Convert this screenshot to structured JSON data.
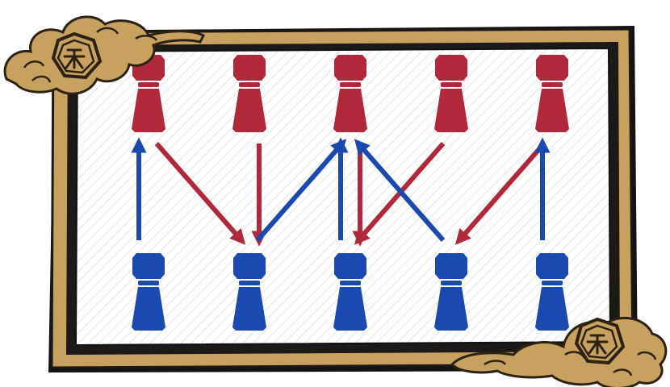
{
  "scene": {
    "colors": {
      "frame_gold": "#c9a15e",
      "frame_dark": "#1c1a19",
      "frame_edge": "#111111",
      "board_bg": "#ffffff",
      "hatch": "#e6e6e6",
      "red_piece": "#b0283a",
      "blue_piece": "#1a49b0",
      "red_arrow": "#b0283a",
      "blue_arrow": "#1a49b0",
      "cloud_fill": "#c9a15e",
      "cloud_line": "#2b2214"
    },
    "top_row": [
      {
        "id": "red-piece-1",
        "color": "red"
      },
      {
        "id": "red-piece-2",
        "color": "red"
      },
      {
        "id": "red-piece-3",
        "color": "red"
      },
      {
        "id": "red-piece-4",
        "color": "red"
      },
      {
        "id": "red-piece-5",
        "color": "red"
      }
    ],
    "bottom_row": [
      {
        "id": "blue-piece-1",
        "color": "blue"
      },
      {
        "id": "blue-piece-2",
        "color": "blue"
      },
      {
        "id": "blue-piece-3",
        "color": "blue"
      },
      {
        "id": "blue-piece-4",
        "color": "blue"
      },
      {
        "id": "blue-piece-5",
        "color": "blue"
      }
    ],
    "arrows": [
      {
        "name": "blue-arrow-b1-to-r1",
        "color": "blue",
        "from": {
          "row": "bottom",
          "col": 1
        },
        "to": {
          "row": "top",
          "col": 1
        }
      },
      {
        "name": "red-arrow-r1-to-b2",
        "color": "red",
        "from": {
          "row": "top",
          "col": 1
        },
        "to": {
          "row": "bottom",
          "col": 2
        }
      },
      {
        "name": "red-arrow-r2-to-b2",
        "color": "red",
        "from": {
          "row": "top",
          "col": 2
        },
        "to": {
          "row": "bottom",
          "col": 2
        }
      },
      {
        "name": "blue-arrow-b2-to-r3",
        "color": "blue",
        "from": {
          "row": "bottom",
          "col": 2
        },
        "to": {
          "row": "top",
          "col": 3
        }
      },
      {
        "name": "blue-arrow-b3-to-r3",
        "color": "blue",
        "from": {
          "row": "bottom",
          "col": 3
        },
        "to": {
          "row": "top",
          "col": 3
        }
      },
      {
        "name": "red-arrow-r3-to-b3",
        "color": "red",
        "from": {
          "row": "top",
          "col": 3
        },
        "to": {
          "row": "bottom",
          "col": 3
        }
      },
      {
        "name": "red-arrow-r4-to-b3",
        "color": "red",
        "from": {
          "row": "top",
          "col": 4
        },
        "to": {
          "row": "bottom",
          "col": 3
        }
      },
      {
        "name": "blue-arrow-b4-to-r3",
        "color": "blue",
        "from": {
          "row": "bottom",
          "col": 4
        },
        "to": {
          "row": "top",
          "col": 3
        }
      },
      {
        "name": "red-arrow-r5-to-b4",
        "color": "red",
        "from": {
          "row": "top",
          "col": 5
        },
        "to": {
          "row": "bottom",
          "col": 4
        }
      },
      {
        "name": "blue-arrow-b5-to-r5",
        "color": "blue",
        "from": {
          "row": "bottom",
          "col": 5
        },
        "to": {
          "row": "top",
          "col": 5
        }
      }
    ],
    "emblems": [
      {
        "name": "cloud-emblem-top-left-icon"
      },
      {
        "name": "cloud-emblem-bottom-right-icon"
      }
    ]
  }
}
